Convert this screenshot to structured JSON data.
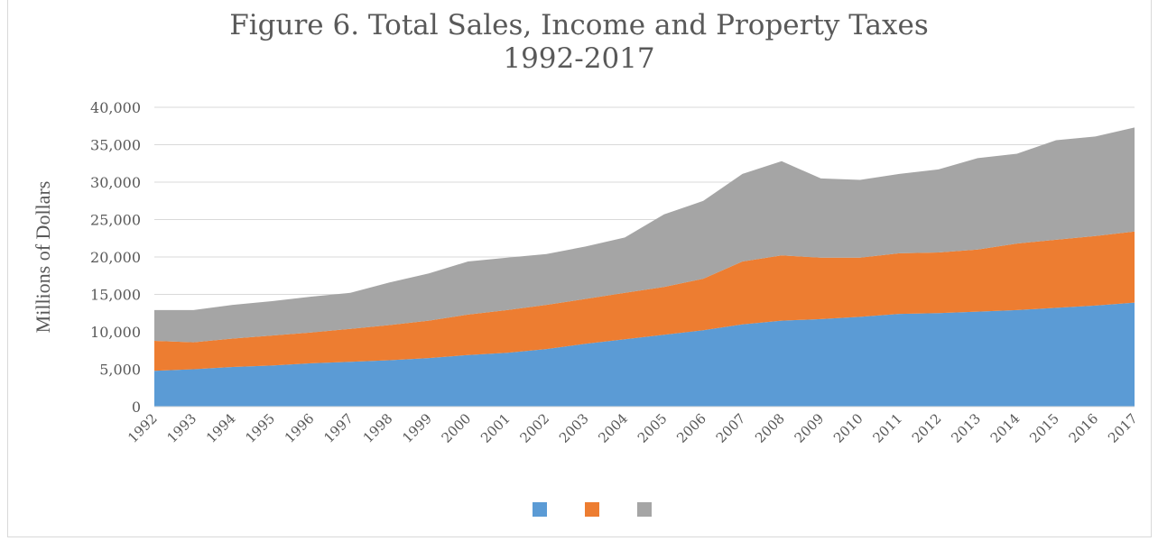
{
  "chart_data": {
    "type": "area",
    "stacked": true,
    "title": "Figure 6. Total Sales, Income and Property Taxes",
    "subtitle": "1992-2017",
    "xlabel": "",
    "ylabel": "Millions of Dollars",
    "ylim": [
      0,
      40000
    ],
    "yticks": [
      "0",
      "5,000",
      "10,000",
      "15,000",
      "20,000",
      "25,000",
      "30,000",
      "35,000",
      "40,000"
    ],
    "categories": [
      "1992",
      "1993",
      "1994",
      "1995",
      "1996",
      "1997",
      "1998",
      "1999",
      "2000",
      "2001",
      "2002",
      "2003",
      "2004",
      "2005",
      "2006",
      "2007",
      "2008",
      "2009",
      "2010",
      "2011",
      "2012",
      "2013",
      "2014",
      "2015",
      "2016",
      "2017"
    ],
    "series": [
      {
        "color": "#5b9bd5",
        "values": [
          4800,
          5000,
          5300,
          5500,
          5800,
          6000,
          6200,
          6500,
          6900,
          7200,
          7700,
          8400,
          9000,
          9600,
          10200,
          11000,
          11500,
          11700,
          12000,
          12400,
          12500,
          12700,
          12900,
          13200,
          13500,
          13900
        ]
      },
      {
        "color": "#ed7d31",
        "values": [
          4000,
          3600,
          3800,
          4000,
          4100,
          4400,
          4700,
          5000,
          5400,
          5700,
          5900,
          6000,
          6200,
          6400,
          6900,
          8400,
          8700,
          8200,
          7900,
          8100,
          8100,
          8300,
          8900,
          9100,
          9300,
          9500
        ]
      },
      {
        "color": "#a5a5a5",
        "values": [
          4100,
          4300,
          4500,
          4600,
          4800,
          4800,
          5700,
          6300,
          7100,
          7000,
          6800,
          7000,
          7400,
          9700,
          10400,
          11700,
          12600,
          10600,
          10400,
          10600,
          11100,
          12200,
          12000,
          13300,
          13300,
          13900
        ]
      }
    ],
    "legend": {
      "position": "bottom",
      "entries": [
        "",
        "",
        ""
      ]
    },
    "grid": true
  }
}
